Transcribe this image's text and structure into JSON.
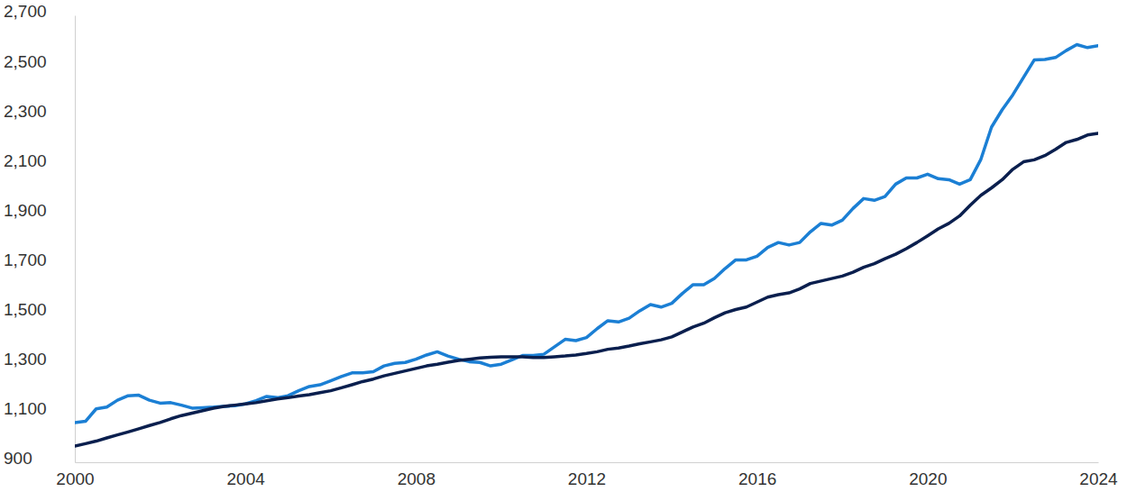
{
  "chart_data": {
    "type": "line",
    "x": [
      2000,
      2000.25,
      2000.5,
      2000.75,
      2001,
      2001.25,
      2001.5,
      2001.75,
      2002,
      2002.25,
      2002.5,
      2002.75,
      2003,
      2003.25,
      2003.5,
      2003.75,
      2004,
      2004.25,
      2004.5,
      2004.75,
      2005,
      2005.25,
      2005.5,
      2005.75,
      2006,
      2006.25,
      2006.5,
      2006.75,
      2007,
      2007.25,
      2007.5,
      2007.75,
      2008,
      2008.25,
      2008.5,
      2008.75,
      2009,
      2009.25,
      2009.5,
      2009.75,
      2010,
      2010.25,
      2010.5,
      2010.75,
      2011,
      2011.25,
      2011.5,
      2011.75,
      2012,
      2012.25,
      2012.5,
      2012.75,
      2013,
      2013.25,
      2013.5,
      2013.75,
      2014,
      2014.25,
      2014.5,
      2014.75,
      2015,
      2015.25,
      2015.5,
      2015.75,
      2016,
      2016.25,
      2016.5,
      2016.75,
      2017,
      2017.25,
      2017.5,
      2017.75,
      2018,
      2018.25,
      2018.5,
      2018.75,
      2019,
      2019.25,
      2019.5,
      2019.75,
      2020,
      2020.25,
      2020.5,
      2020.75,
      2021,
      2021.25,
      2021.5,
      2021.75,
      2022,
      2022.25,
      2022.5,
      2022.75,
      2023,
      2023.25,
      2023.5,
      2023.75,
      2024
    ],
    "series": [
      {
        "color": "#1b7fd4",
        "values": [
          1060,
          1065,
          1115,
          1122,
          1150,
          1168,
          1170,
          1150,
          1138,
          1140,
          1130,
          1118,
          1120,
          1122,
          1125,
          1128,
          1135,
          1148,
          1165,
          1160,
          1168,
          1188,
          1205,
          1212,
          1228,
          1245,
          1260,
          1260,
          1265,
          1288,
          1298,
          1302,
          1315,
          1332,
          1345,
          1328,
          1315,
          1305,
          1302,
          1288,
          1295,
          1312,
          1330,
          1330,
          1335,
          1365,
          1395,
          1390,
          1402,
          1438,
          1470,
          1465,
          1480,
          1510,
          1535,
          1525,
          1540,
          1580,
          1615,
          1615,
          1640,
          1680,
          1715,
          1715,
          1730,
          1765,
          1785,
          1775,
          1785,
          1828,
          1862,
          1855,
          1875,
          1922,
          1962,
          1955,
          1970,
          2020,
          2045,
          2045,
          2060,
          2042,
          2038,
          2020,
          2038,
          2120,
          2250,
          2320,
          2380,
          2450,
          2520,
          2522,
          2530,
          2558,
          2582,
          2570,
          2578
        ]
      },
      {
        "color": "#0a1f4e",
        "values": [
          965,
          975,
          985,
          998,
          1010,
          1022,
          1035,
          1048,
          1060,
          1075,
          1088,
          1098,
          1108,
          1118,
          1125,
          1130,
          1135,
          1140,
          1148,
          1155,
          1160,
          1167,
          1172,
          1180,
          1188,
          1200,
          1212,
          1225,
          1235,
          1248,
          1258,
          1268,
          1278,
          1288,
          1295,
          1303,
          1310,
          1315,
          1320,
          1323,
          1325,
          1325,
          1325,
          1322,
          1322,
          1325,
          1328,
          1332,
          1338,
          1345,
          1355,
          1360,
          1368,
          1377,
          1385,
          1393,
          1405,
          1425,
          1445,
          1460,
          1482,
          1502,
          1515,
          1525,
          1545,
          1565,
          1575,
          1582,
          1598,
          1620,
          1630,
          1640,
          1650,
          1665,
          1685,
          1700,
          1720,
          1738,
          1760,
          1785,
          1812,
          1840,
          1862,
          1892,
          1935,
          1975,
          2005,
          2038,
          2080,
          2110,
          2118,
          2135,
          2160,
          2188,
          2200,
          2218,
          2225
        ]
      }
    ],
    "xlim": [
      2000,
      2024
    ],
    "xticks": [
      2000,
      2004,
      2008,
      2012,
      2016,
      2020,
      2024
    ],
    "ylim": [
      900,
      2700
    ],
    "yticks": [
      900,
      {
        "value": 1100,
        "label": "1,100"
      },
      {
        "value": 1300,
        "label": "1,300"
      },
      {
        "value": 1500,
        "label": "1,500"
      },
      {
        "value": 1700,
        "label": "1,700"
      },
      {
        "value": 1900,
        "label": "1,900"
      },
      {
        "value": 2100,
        "label": "2,100"
      },
      {
        "value": 2300,
        "label": "2,300"
      },
      {
        "value": 2500,
        "label": "2,500"
      },
      {
        "value": 2700,
        "label": "2,700"
      }
    ],
    "grid": false
  }
}
